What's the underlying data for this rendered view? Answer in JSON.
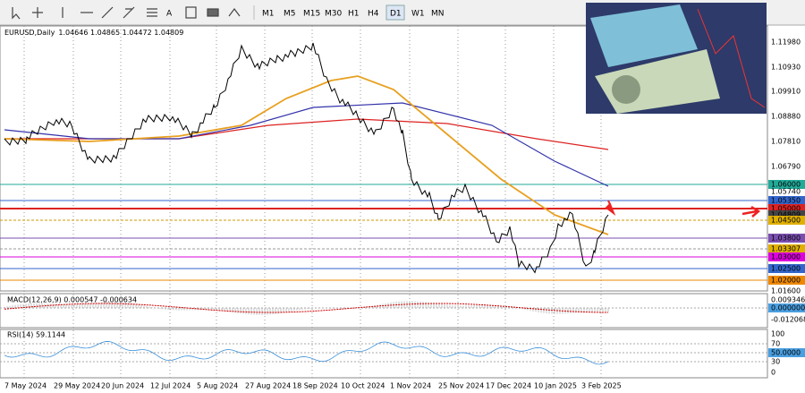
{
  "toolbar": {
    "text_tool": "A",
    "timeframes": [
      "M1",
      "M5",
      "M15",
      "M30",
      "H1",
      "H4",
      "D1",
      "W1",
      "MN"
    ]
  },
  "main": {
    "symbol": "EURUSD,Daily",
    "ohlc": "1.04646 1.04865 1.04472 1.04809",
    "price_labels": [
      "1.11980",
      "1.10930",
      "1.09910",
      "1.08880",
      "1.07810",
      "1.06790",
      "1.06000",
      "1.05740",
      "1.05350",
      "1.05000",
      "1.04809",
      "1.04500",
      "1.03800",
      "1.03307",
      "1.03000",
      "1.02500",
      "1.02000",
      "1.01600"
    ]
  },
  "macd": {
    "label": "MACD(12,26,9) 0.000547 -0.000634",
    "axis_labels": [
      "0.009346",
      "0.000000",
      "-0.012068"
    ]
  },
  "rsi": {
    "label": "RSI(14) 59.1144",
    "axis_labels": [
      "100",
      "70",
      "50.0000",
      "30",
      "0"
    ]
  },
  "dates": [
    "7 May 2024",
    "29 May 2024",
    "20 Jun 2024",
    "12 Jul 2024",
    "5 Aug 2024",
    "27 Aug 2024",
    "18 Sep 2024",
    "10 Oct 2024",
    "1 Nov 2024",
    "25 Nov 2024",
    "17 Dec 2024",
    "10 Jan 2025",
    "3 Feb 2025"
  ]
}
